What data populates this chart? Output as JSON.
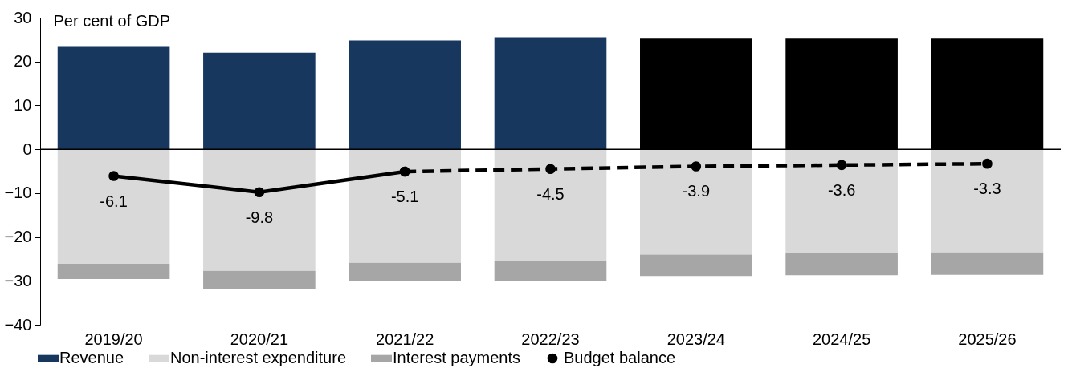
{
  "chart_data": {
    "type": "bar",
    "ylabel": "Per cent of GDP",
    "stacked": true,
    "categories": [
      "2019/20",
      "2020/21",
      "2021/22",
      "2022/23",
      "2023/24",
      "2024/25",
      "2025/26"
    ],
    "series": [
      {
        "name": "Revenue",
        "color": "#17375e",
        "colors": [
          "#17375e",
          "#17375e",
          "#17375e",
          "#17375e",
          "#000000",
          "#000000",
          "#000000"
        ],
        "values": [
          23.5,
          22.0,
          24.8,
          25.5,
          25.2,
          25.2,
          25.2
        ]
      },
      {
        "name": "Non-interest expenditure",
        "color": "#d9d9d9",
        "values": [
          -26.1,
          -27.7,
          -25.9,
          -25.4,
          -24.0,
          -23.7,
          -23.5
        ]
      },
      {
        "name": "Interest payments",
        "color": "#a6a6a6",
        "values": [
          -3.5,
          -4.1,
          -4.1,
          -4.7,
          -4.9,
          -5.0,
          -5.1
        ]
      },
      {
        "name": "Budget balance",
        "type": "line",
        "color": "#000000",
        "marker": "circle",
        "line_style": "solid",
        "value_labels": [
          "-6.1",
          "-9.8",
          "-5.1",
          null,
          null,
          null,
          null
        ],
        "values": [
          -6.1,
          -9.8,
          -5.1,
          null,
          null,
          null,
          null
        ]
      },
      {
        "type": "line",
        "color": "#000000",
        "marker": "circle",
        "line_style": "dashed",
        "value_labels": [
          null,
          null,
          null,
          "-4.5",
          "-3.9",
          "-3.6",
          "-3.3"
        ],
        "values": [
          null,
          null,
          -5.1,
          -4.5,
          -3.9,
          -3.6,
          -3.3
        ]
      }
    ],
    "ylim": [
      -40,
      30
    ],
    "yticks": [
      -40,
      -30,
      -20,
      -10,
      0,
      10,
      20,
      30
    ],
    "ref_lines": [
      {
        "axis": "y",
        "value": 0,
        "color": "#000000"
      }
    ],
    "legend": "bottom"
  }
}
